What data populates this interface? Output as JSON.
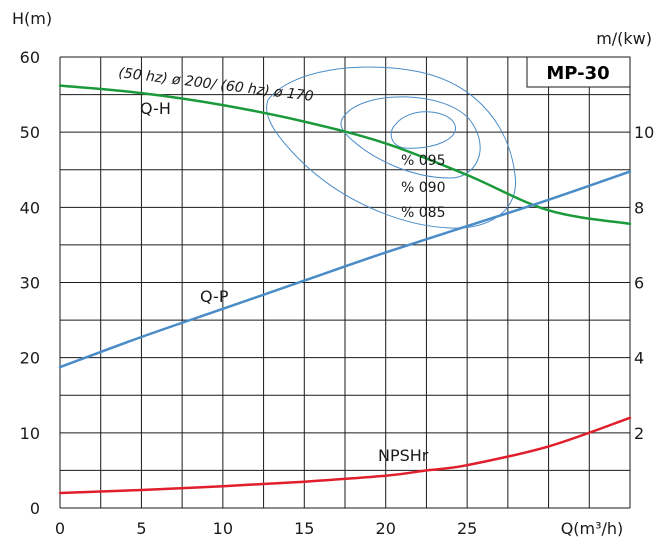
{
  "chart_data": {
    "type": "line",
    "title": "MP-30",
    "ylabel_left": "H(m)",
    "ylabel_right": "m/(kw)",
    "xlabel": "Q(m³/h)",
    "impeller_note": "(50 hz) ø 200/ (60 hz) ø 170",
    "xlim": [
      0,
      35
    ],
    "ylim_left": [
      0,
      60
    ],
    "ylim_right": [
      0,
      12
    ],
    "x_ticks": [
      {
        "value": 0,
        "label": "0"
      },
      {
        "value": 5,
        "label": "5"
      },
      {
        "value": 10,
        "label": "10"
      },
      {
        "value": 15,
        "label": "15"
      },
      {
        "value": 20,
        "label": "20"
      },
      {
        "value": 25,
        "label": "25"
      }
    ],
    "y_ticks_left": [
      {
        "value": 0,
        "label": "0"
      },
      {
        "value": 10,
        "label": "10"
      },
      {
        "value": 20,
        "label": "20"
      },
      {
        "value": 30,
        "label": "30"
      },
      {
        "value": 40,
        "label": "40"
      },
      {
        "value": 50,
        "label": "50"
      },
      {
        "value": 60,
        "label": "60"
      }
    ],
    "y_ticks_right": [
      {
        "value": 2,
        "label": "2"
      },
      {
        "value": 4,
        "label": "4"
      },
      {
        "value": 6,
        "label": "6"
      },
      {
        "value": 8,
        "label": "8"
      },
      {
        "value": 10,
        "label": "10"
      }
    ],
    "grid": true,
    "series": [
      {
        "name": "Q-H",
        "axis": "left",
        "color": "#1a9a3a",
        "x": [
          0,
          5,
          10,
          15,
          20,
          25,
          30,
          35
        ],
        "y": [
          56.2,
          55.2,
          53.6,
          51.4,
          48.5,
          44.3,
          39.6,
          37.8
        ]
      },
      {
        "name": "Q-P",
        "axis": "right",
        "color": "#4a8cc8",
        "x": [
          0,
          5,
          10,
          15,
          20,
          25,
          30,
          35
        ],
        "y": [
          3.75,
          4.55,
          5.3,
          6.05,
          6.8,
          7.5,
          8.2,
          8.95
        ]
      },
      {
        "name": "NPSHr",
        "axis": "left",
        "color": "#e01e2c",
        "x": [
          0,
          5,
          10,
          15,
          20,
          22.5,
          25,
          30,
          35
        ],
        "y": [
          2.0,
          2.4,
          2.9,
          3.5,
          4.3,
          5.0,
          5.7,
          8.2,
          12.0
        ]
      }
    ],
    "efficiency_labels": [
      "% 095",
      "% 090",
      "% 085"
    ],
    "colors": {
      "qh": "#1a9a3a",
      "qp": "#4a8cc8",
      "npshr": "#e01e2c",
      "efficiency": "#4a8cc8",
      "grid": "#1a1a1a"
    }
  }
}
